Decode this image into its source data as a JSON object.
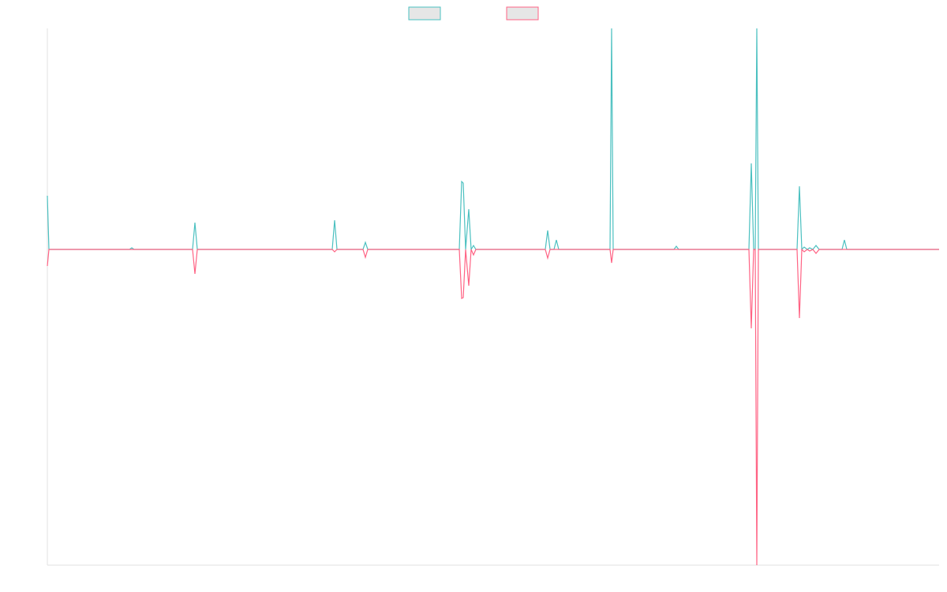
{
  "chart_data": {
    "type": "line",
    "x": [
      0,
      2,
      104,
      107,
      110,
      184,
      187,
      190,
      361,
      364,
      367,
      400,
      403,
      406,
      522,
      525,
      527,
      530,
      534,
      537,
      540,
      543,
      631,
      634,
      637,
      642,
      645,
      648,
      713,
      715,
      717,
      794,
      797,
      800,
      889,
      892,
      895,
      897,
      899,
      901,
      950,
      953,
      956,
      959,
      963,
      966,
      970,
      974,
      978,
      1007,
      1010,
      1013,
      1130
    ],
    "xlim": [
      0,
      1130
    ],
    "ylim": [
      -400,
      280
    ],
    "legend": "top",
    "series": [
      {
        "color": "#4bc0c0",
        "values": [
          68,
          0,
          0,
          2,
          0,
          0,
          34,
          0,
          0,
          37,
          0,
          0,
          9,
          0,
          0,
          86,
          84,
          0,
          51,
          0,
          5,
          0,
          0,
          24,
          0,
          0,
          12,
          0,
          0,
          280,
          0,
          0,
          4,
          0,
          0,
          109,
          0,
          0,
          280,
          0,
          0,
          80,
          0,
          3,
          0,
          2,
          0,
          5,
          0,
          0,
          12,
          0,
          0
        ]
      },
      {
        "color": "#ff6384",
        "values": [
          -21,
          0,
          0,
          0,
          0,
          0,
          -31,
          0,
          0,
          -3,
          0,
          0,
          -10,
          0,
          0,
          -62,
          -61,
          0,
          -46,
          0,
          -7,
          0,
          0,
          -11,
          0,
          0,
          0,
          0,
          0,
          -17,
          0,
          0,
          0,
          0,
          0,
          -100,
          0,
          0,
          -400,
          0,
          0,
          -87,
          0,
          -3,
          0,
          -2,
          0,
          -5,
          0,
          0,
          0,
          0,
          0
        ]
      }
    ]
  }
}
